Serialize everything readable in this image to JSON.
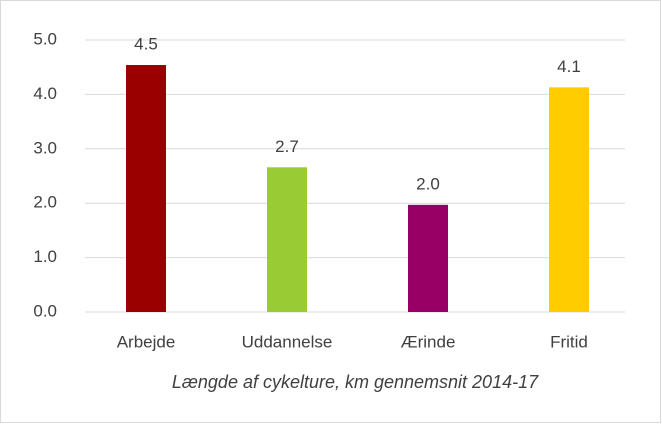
{
  "chart_data": {
    "type": "bar",
    "title": "Længde af cykelture, km gennemsnit 2014-17",
    "categories": [
      "Arbejde",
      "Uddannelse",
      "Ærinde",
      "Fritid"
    ],
    "values": [
      4.54,
      2.66,
      1.97,
      4.13
    ],
    "value_labels": [
      "4.5",
      "2.7",
      "2.0",
      "4.1"
    ],
    "colors": [
      "#990000",
      "#99cc33",
      "#990066",
      "#ffcc00"
    ],
    "ylim": [
      0,
      5
    ],
    "yticks": [
      {
        "value": 0,
        "label": "0.0"
      },
      {
        "value": 1,
        "label": "1.0"
      },
      {
        "value": 2,
        "label": "2.0"
      },
      {
        "value": 3,
        "label": "3.0"
      },
      {
        "value": 4,
        "label": "4.0"
      },
      {
        "value": 5,
        "label": "5.0"
      }
    ],
    "grid": true
  }
}
